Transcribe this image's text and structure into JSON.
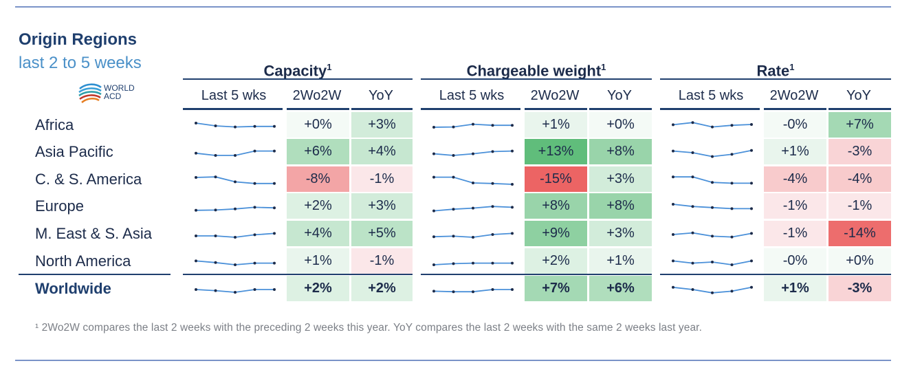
{
  "title": "Origin Regions",
  "subtitle": "last 2 to 5 weeks",
  "logo": {
    "line1": "WORLD",
    "line2": "ACD"
  },
  "footnote": "¹ 2Wo2W compares the last 2 weeks with the preceding 2 weeks this year. YoY compares the last 2 weeks with the same 2 weeks last year.",
  "colors": {
    "dark_navy": "#1f3f6e",
    "spark_line": "#4a90d9",
    "rule": "#7a93c8"
  },
  "chart_data": {
    "type": "table",
    "column_headers": [
      "Last 5 wks",
      "2Wo2W",
      "YoY"
    ],
    "groups": [
      {
        "name": "Capacity",
        "superscript": "1"
      },
      {
        "name": "Chargeable weight",
        "superscript": "1"
      },
      {
        "name": "Rate",
        "superscript": "1"
      }
    ],
    "rows": [
      {
        "label": "Africa",
        "capacity": {
          "spark": [
            3,
            2,
            1.6,
            1.8,
            1.8
          ],
          "wo2w": "+0%",
          "yoy": "+3%"
        },
        "weight": {
          "spark": [
            1.5,
            1.6,
            2.6,
            2.2,
            2.2
          ],
          "wo2w": "+1%",
          "yoy": "+0%"
        },
        "rate": {
          "spark": [
            2.4,
            3.2,
            1.6,
            2.2,
            2.5
          ],
          "wo2w": "-0%",
          "yoy": "+7%"
        }
      },
      {
        "label": "Asia Pacific",
        "capacity": {
          "spark": [
            1.8,
            1.0,
            1.0,
            2.6,
            2.6
          ],
          "wo2w": "+6%",
          "yoy": "+4%"
        },
        "weight": {
          "spark": [
            1.6,
            1.0,
            1.6,
            2.4,
            2.6
          ],
          "wo2w": "+13%",
          "yoy": "+8%"
        },
        "rate": {
          "spark": [
            2.6,
            2.0,
            0.6,
            1.4,
            2.8
          ],
          "wo2w": "+1%",
          "yoy": "-3%"
        }
      },
      {
        "label": "C. & S. America",
        "capacity": {
          "spark": [
            3.0,
            3.2,
            1.4,
            0.8,
            0.8
          ],
          "wo2w": "-8%",
          "yoy": "-1%"
        },
        "weight": {
          "spark": [
            3.1,
            3.1,
            1.0,
            0.8,
            0.5
          ],
          "wo2w": "-15%",
          "yoy": "+3%"
        },
        "rate": {
          "spark": [
            3.2,
            3.2,
            1.2,
            0.9,
            0.9
          ],
          "wo2w": "-4%",
          "yoy": "-4%"
        }
      },
      {
        "label": "Europe",
        "capacity": {
          "spark": [
            0.8,
            0.9,
            1.3,
            1.9,
            1.7
          ],
          "wo2w": "+2%",
          "yoy": "+3%"
        },
        "weight": {
          "spark": [
            0.6,
            1.2,
            1.6,
            2.2,
            1.9
          ],
          "wo2w": "+8%",
          "yoy": "+8%"
        },
        "rate": {
          "spark": [
            3.0,
            2.2,
            1.8,
            1.4,
            1.4
          ],
          "wo2w": "-1%",
          "yoy": "-1%"
        }
      },
      {
        "label": "M. East & S. Asia",
        "capacity": {
          "spark": [
            1.5,
            1.5,
            1.0,
            1.9,
            2.4
          ],
          "wo2w": "+4%",
          "yoy": "+5%"
        },
        "weight": {
          "spark": [
            1.2,
            1.4,
            1.0,
            2.0,
            2.4
          ],
          "wo2w": "+9%",
          "yoy": "+3%"
        },
        "rate": {
          "spark": [
            2.0,
            2.6,
            1.4,
            1.1,
            2.4
          ],
          "wo2w": "-1%",
          "yoy": "-14%"
        }
      },
      {
        "label": "North America",
        "capacity": {
          "spark": [
            2.4,
            1.8,
            1.0,
            1.6,
            1.6
          ],
          "wo2w": "+1%",
          "yoy": "-1%"
        },
        "weight": {
          "spark": [
            1.0,
            1.4,
            1.6,
            1.6,
            1.6
          ],
          "wo2w": "+2%",
          "yoy": "+1%"
        },
        "rate": {
          "spark": [
            2.4,
            1.6,
            2.0,
            1.0,
            2.4
          ],
          "wo2w": "-0%",
          "yoy": "+0%"
        }
      },
      {
        "label": "Worldwide",
        "bold": true,
        "capacity": {
          "spark": [
            2.0,
            1.6,
            1.0,
            2.0,
            2.0
          ],
          "wo2w": "+2%",
          "yoy": "+2%"
        },
        "weight": {
          "spark": [
            1.4,
            1.2,
            1.2,
            2.0,
            2.0
          ],
          "wo2w": "+7%",
          "yoy": "+6%"
        },
        "rate": {
          "spark": [
            2.8,
            2.0,
            0.8,
            1.4,
            2.8
          ],
          "wo2w": "+1%",
          "yoy": "-3%"
        }
      }
    ]
  }
}
